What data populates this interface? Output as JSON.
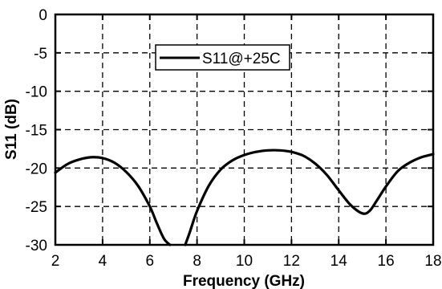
{
  "chart_data": {
    "type": "line",
    "title": "",
    "xlabel": "Frequency (GHz)",
    "ylabel": "S11 (dB)",
    "xlim": [
      2,
      18
    ],
    "ylim": [
      -30,
      0
    ],
    "xticks": [
      2,
      4,
      6,
      8,
      10,
      12,
      14,
      16,
      18
    ],
    "yticks": [
      0,
      -5,
      -10,
      -15,
      -20,
      -25,
      -30
    ],
    "xtick_labels": [
      "2",
      "4",
      "6",
      "8",
      "10",
      "12",
      "14",
      "16",
      "18"
    ],
    "ytick_labels": [
      "0",
      "-5",
      "-10",
      "-15",
      "-20",
      "-25",
      "-30"
    ],
    "grid": true,
    "grid_style": "dashed",
    "legend_position": "top-center",
    "series": [
      {
        "name": "S11@+25C",
        "color": "#000000",
        "x": [
          2.0,
          2.5,
          3.0,
          3.5,
          4.0,
          4.5,
          5.0,
          5.5,
          6.0,
          6.3,
          6.6,
          6.85,
          7.5,
          7.7,
          8.0,
          8.5,
          9.0,
          9.5,
          10.0,
          10.5,
          11.0,
          11.5,
          12.0,
          12.5,
          13.0,
          13.5,
          14.0,
          14.5,
          15.0,
          15.3,
          15.6,
          16.0,
          16.5,
          17.0,
          17.5,
          18.0
        ],
        "y": [
          -20.6,
          -19.5,
          -18.9,
          -18.6,
          -18.7,
          -19.3,
          -20.5,
          -22.3,
          -25.0,
          -27.2,
          -29.2,
          -30.0,
          -30.0,
          -28.3,
          -25.6,
          -22.3,
          -20.2,
          -19.0,
          -18.3,
          -17.9,
          -17.7,
          -17.7,
          -17.9,
          -18.4,
          -19.4,
          -20.9,
          -22.9,
          -24.8,
          -25.9,
          -25.6,
          -24.3,
          -22.4,
          -20.4,
          -19.3,
          -18.6,
          -18.2
        ]
      }
    ]
  }
}
